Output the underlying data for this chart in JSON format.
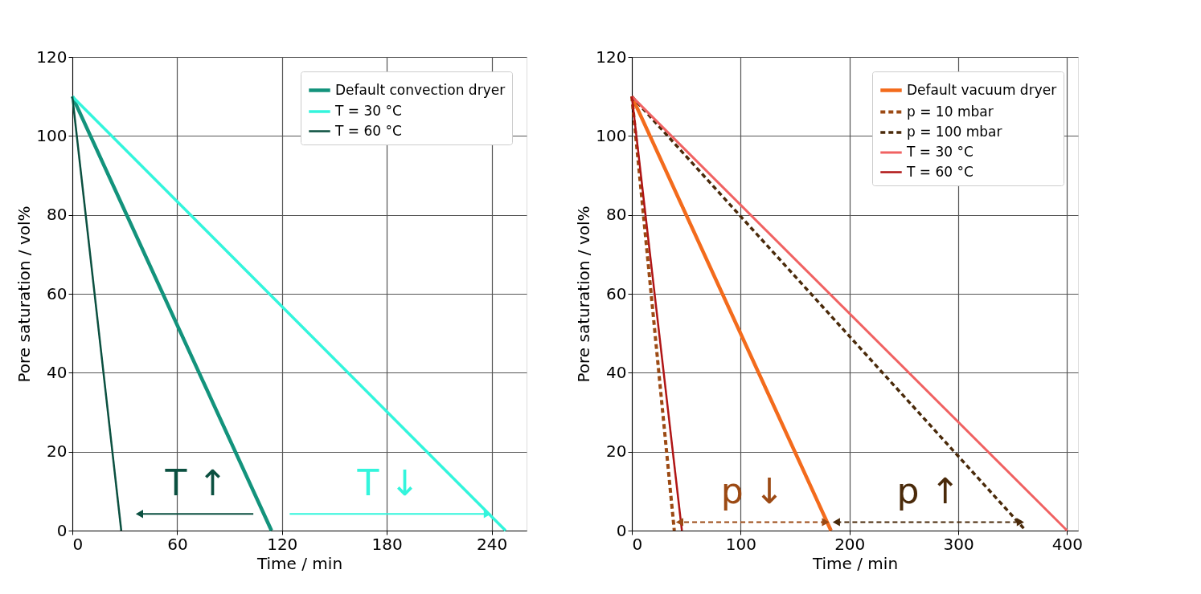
{
  "chart_data": [
    {
      "type": "line",
      "xlabel": "Time / min",
      "ylabel": "Pore saturation / vol%",
      "xlim": [
        0,
        260
      ],
      "xticks": [
        0,
        60,
        120,
        180,
        240
      ],
      "ylim": [
        0,
        120
      ],
      "yticks": [
        0,
        20,
        40,
        60,
        80,
        100,
        120
      ],
      "grid": true,
      "legend": "top right",
      "line_style": "solid",
      "series": [
        {
          "name": "Default convection dryer",
          "color": "#13937c",
          "x": [
            0,
            114
          ],
          "values": [
            110,
            0
          ]
        },
        {
          "name": "T = 30 °C",
          "color": "#33f5dc",
          "x": [
            0,
            248
          ],
          "values": [
            110,
            0
          ]
        },
        {
          "name": "T = 60 °C",
          "color": "#0b5040",
          "x": [
            0,
            28
          ],
          "values": [
            110,
            0
          ]
        }
      ],
      "annotations": [
        "T ↓",
        "T ↑"
      ]
    },
    {
      "type": "line",
      "xlabel": "Time / min",
      "ylabel": "Pore saturation / vol%",
      "xlim": [
        0,
        410
      ],
      "xticks": [
        0,
        100,
        200,
        300,
        400
      ],
      "ylim": [
        0,
        120
      ],
      "yticks": [
        0,
        20,
        40,
        60,
        80,
        100,
        120
      ],
      "grid": true,
      "legend": "top right",
      "line_style": "solid",
      "series": [
        {
          "name": "Default vacuum dryer",
          "color": "#f36b1c",
          "x": [
            0,
            183
          ],
          "values": [
            110,
            0
          ]
        },
        {
          "name": "p = 10 mbar",
          "color": "#9c4a14",
          "line_style": "dashed",
          "x": [
            0,
            39
          ],
          "values": [
            110,
            0
          ]
        },
        {
          "name": "p = 100 mbar",
          "color": "#4a2a0a",
          "line_style": "dashed",
          "x": [
            0,
            362
          ],
          "values": [
            110,
            0
          ]
        },
        {
          "name": "T = 30 °C",
          "color": "#f06262",
          "x": [
            0,
            400
          ],
          "values": [
            110,
            0
          ]
        },
        {
          "name": "T = 60 °C",
          "color": "#b01515",
          "x": [
            0,
            46
          ],
          "values": [
            110,
            0
          ]
        }
      ],
      "annotations": [
        "p ↓",
        "p ↑"
      ]
    }
  ]
}
